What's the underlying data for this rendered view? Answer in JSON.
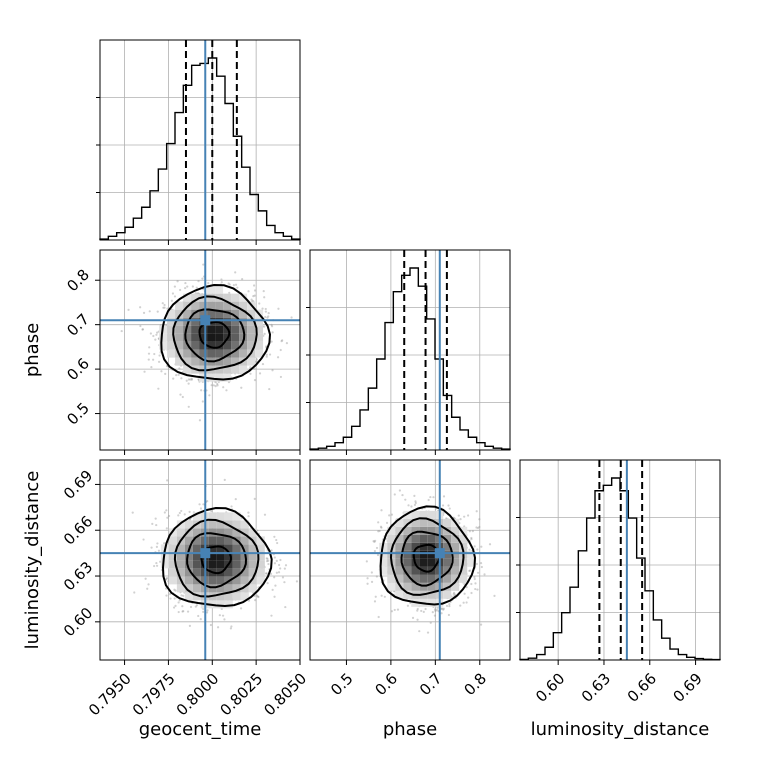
{
  "chart_data": {
    "type": "corner",
    "parameters": [
      "geocent_time",
      "phase",
      "luminosity_distance"
    ],
    "truths": {
      "geocent_time": 0.7996,
      "phase": 0.71,
      "luminosity_distance": 0.645
    },
    "ranges": {
      "geocent_time": [
        0.7936,
        0.805
      ],
      "phase": [
        0.418,
        0.868
      ],
      "luminosity_distance": [
        0.575,
        0.706
      ]
    },
    "ticks": {
      "geocent_time": [
        0.795,
        0.7975,
        0.8,
        0.8025,
        0.805
      ],
      "phase": [
        0.5,
        0.6,
        0.7,
        0.8
      ],
      "luminosity_distance": [
        0.6,
        0.63,
        0.66,
        0.69
      ]
    },
    "tick_labels": {
      "geocent_time": [
        "0.7950",
        "0.7975",
        "0.8000",
        "0.8025",
        "0.8050"
      ],
      "phase": [
        "0.5",
        "0.6",
        "0.7",
        "0.8"
      ],
      "luminosity_distance": [
        "0.60",
        "0.63",
        "0.66",
        "0.69"
      ]
    },
    "quantiles": {
      "geocent_time": [
        0.7985,
        0.8,
        0.8014
      ],
      "phase": [
        0.63,
        0.678,
        0.726
      ],
      "luminosity_distance": [
        0.627,
        0.641,
        0.655
      ]
    },
    "histograms": {
      "geocent_time": {
        "bins": [
          0.7936,
          0.805
        ],
        "counts": [
          0.005,
          0.02,
          0.04,
          0.07,
          0.12,
          0.18,
          0.27,
          0.39,
          0.53,
          0.7,
          0.85,
          0.96,
          0.97,
          1.0,
          0.9,
          0.75,
          0.57,
          0.4,
          0.25,
          0.16,
          0.08,
          0.04,
          0.02,
          0.005
        ]
      },
      "phase": {
        "bins": [
          0.418,
          0.868
        ],
        "counts": [
          0.005,
          0.01,
          0.02,
          0.04,
          0.07,
          0.13,
          0.22,
          0.34,
          0.5,
          0.7,
          0.87,
          0.96,
          1.0,
          0.9,
          0.72,
          0.5,
          0.3,
          0.18,
          0.11,
          0.07,
          0.04,
          0.02,
          0.01,
          0.005
        ]
      },
      "luminosity_distance": {
        "bins": [
          0.575,
          0.706
        ],
        "counts": [
          0.003,
          0.01,
          0.03,
          0.07,
          0.15,
          0.26,
          0.4,
          0.6,
          0.78,
          0.93,
          0.96,
          1.0,
          0.93,
          0.78,
          0.56,
          0.38,
          0.22,
          0.12,
          0.06,
          0.03,
          0.015,
          0.008,
          0.004,
          0.002
        ]
      }
    },
    "posterior_2d": {
      "phase|geocent_time": {
        "center": [
          0.8001,
          0.678
        ],
        "sigma": [
          0.0014,
          0.048
        ],
        "contour_levels": [
          0.6,
          1.2,
          1.7,
          2.2
        ]
      },
      "luminosity_distance|geocent_time": {
        "center": [
          0.8002,
          0.641
        ],
        "sigma": [
          0.0014,
          0.0145
        ],
        "contour_levels": [
          0.6,
          1.2,
          1.7,
          2.2
        ]
      },
      "luminosity_distance|phase": {
        "center": [
          0.68,
          0.642
        ],
        "sigma": [
          0.048,
          0.0145
        ],
        "contour_levels": [
          0.6,
          1.2,
          1.7,
          2.2
        ]
      }
    },
    "axis_labels": {
      "x": [
        "geocent_time",
        "phase",
        "luminosity_distance"
      ],
      "y": [
        "phase",
        "luminosity_distance"
      ]
    },
    "grid": true
  }
}
